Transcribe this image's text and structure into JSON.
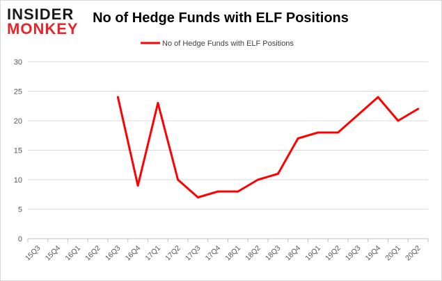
{
  "brand": {
    "logo_line1": "INSIDER",
    "logo_line2": "MONKEY",
    "logo_color_dark": "#1a1a1a",
    "logo_color_accent": "#e8232a"
  },
  "colors": {
    "series": "#ff0000",
    "grid": "#d9d9d9",
    "axis": "#bfbfbf",
    "tick_text": "#595959",
    "title_text": "#000000"
  },
  "chart_data": {
    "type": "line",
    "title": "No of Hedge Funds with ELF Positions",
    "xlabel": "",
    "ylabel": "",
    "ylim": [
      0,
      30
    ],
    "yticks": [
      0,
      5,
      10,
      15,
      20,
      25,
      30
    ],
    "grid": "horizontal",
    "legend_position": "top",
    "categories": [
      "15Q3",
      "15Q4",
      "16Q1",
      "16Q2",
      "16Q3",
      "16Q4",
      "17Q1",
      "17Q2",
      "17Q3",
      "17Q4",
      "18Q1",
      "18Q2",
      "18Q3",
      "18Q4",
      "19Q1",
      "19Q2",
      "19Q3",
      "19Q4",
      "20Q1",
      "20Q2"
    ],
    "series": [
      {
        "name": "No of Hedge Funds with ELF Positions",
        "values": [
          null,
          null,
          null,
          null,
          24,
          9,
          23,
          10,
          7,
          8,
          8,
          10,
          11,
          17,
          18,
          18,
          21,
          24,
          20,
          22
        ]
      }
    ]
  }
}
